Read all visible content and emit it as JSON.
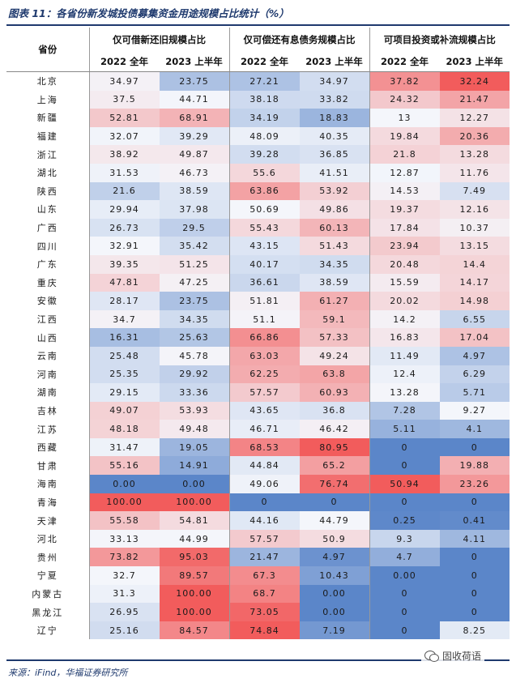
{
  "title": "图表 11：各省份新发城投债募集资金用途规模占比统计（%）",
  "source": "来源：iFind，华福证券研究所",
  "watermark": "固收荷语",
  "header": {
    "province": "省份",
    "groups": [
      "仅可借新还旧规模占比",
      "仅可偿还有息债务规模占比",
      "可项目投资或补流规模占比"
    ],
    "subcols": [
      "2022 全年",
      "2023 上半年"
    ]
  },
  "rows": [
    {
      "p": "北京",
      "v": [
        "34.97",
        "23.75",
        "27.21",
        "34.97",
        "37.82",
        "32.24"
      ]
    },
    {
      "p": "上海",
      "v": [
        "37.5",
        "44.71",
        "38.18",
        "33.82",
        "24.32",
        "21.47"
      ]
    },
    {
      "p": "新疆",
      "v": [
        "52.81",
        "68.91",
        "34.19",
        "18.83",
        "13",
        "12.27"
      ]
    },
    {
      "p": "福建",
      "v": [
        "32.07",
        "39.29",
        "48.09",
        "40.35",
        "19.84",
        "20.36"
      ]
    },
    {
      "p": "浙江",
      "v": [
        "38.92",
        "49.87",
        "39.28",
        "36.85",
        "21.8",
        "13.28"
      ]
    },
    {
      "p": "湖北",
      "v": [
        "31.53",
        "46.73",
        "55.6",
        "41.51",
        "12.87",
        "11.76"
      ]
    },
    {
      "p": "陕西",
      "v": [
        "21.6",
        "38.59",
        "63.86",
        "53.92",
        "14.53",
        "7.49"
      ]
    },
    {
      "p": "山东",
      "v": [
        "29.94",
        "37.98",
        "50.69",
        "49.86",
        "19.37",
        "12.16"
      ]
    },
    {
      "p": "广西",
      "v": [
        "26.73",
        "29.5",
        "55.43",
        "60.13",
        "17.84",
        "10.37"
      ]
    },
    {
      "p": "四川",
      "v": [
        "32.91",
        "35.42",
        "43.15",
        "51.43",
        "23.94",
        "13.15"
      ]
    },
    {
      "p": "广东",
      "v": [
        "39.35",
        "51.25",
        "40.17",
        "34.35",
        "20.48",
        "14.4"
      ]
    },
    {
      "p": "重庆",
      "v": [
        "47.81",
        "47.25",
        "36.61",
        "38.59",
        "15.59",
        "14.17"
      ]
    },
    {
      "p": "安徽",
      "v": [
        "28.17",
        "23.75",
        "51.81",
        "61.27",
        "20.02",
        "14.98"
      ]
    },
    {
      "p": "江西",
      "v": [
        "34.7",
        "34.35",
        "51.1",
        "59.1",
        "14.2",
        "6.55"
      ]
    },
    {
      "p": "山西",
      "v": [
        "16.31",
        "25.63",
        "66.86",
        "57.33",
        "16.83",
        "17.04"
      ]
    },
    {
      "p": "云南",
      "v": [
        "25.48",
        "45.78",
        "63.03",
        "49.24",
        "11.49",
        "4.97"
      ]
    },
    {
      "p": "河南",
      "v": [
        "25.35",
        "29.92",
        "62.25",
        "63.8",
        "12.4",
        "6.29"
      ]
    },
    {
      "p": "湖南",
      "v": [
        "29.15",
        "33.36",
        "57.57",
        "60.93",
        "13.28",
        "5.71"
      ]
    },
    {
      "p": "吉林",
      "v": [
        "49.07",
        "53.93",
        "43.65",
        "36.8",
        "7.28",
        "9.27"
      ]
    },
    {
      "p": "江苏",
      "v": [
        "48.18",
        "49.48",
        "46.71",
        "46.42",
        "5.11",
        "4.1"
      ]
    },
    {
      "p": "西藏",
      "v": [
        "31.47",
        "19.05",
        "68.53",
        "80.95",
        "0",
        "0"
      ]
    },
    {
      "p": "甘肃",
      "v": [
        "55.16",
        "14.91",
        "44.84",
        "65.2",
        "0",
        "19.88"
      ]
    },
    {
      "p": "海南",
      "v": [
        "0.00",
        "0.00",
        "49.06",
        "76.74",
        "50.94",
        "23.26"
      ]
    },
    {
      "p": "青海",
      "v": [
        "100.00",
        "100.00",
        "0",
        "0",
        "0",
        "0"
      ]
    },
    {
      "p": "天津",
      "v": [
        "55.58",
        "54.81",
        "44.16",
        "44.79",
        "0.25",
        "0.41"
      ]
    },
    {
      "p": "河北",
      "v": [
        "33.13",
        "44.99",
        "57.57",
        "50.9",
        "9.3",
        "4.11"
      ]
    },
    {
      "p": "贵州",
      "v": [
        "73.82",
        "95.03",
        "21.47",
        "4.97",
        "4.7",
        "0"
      ]
    },
    {
      "p": "宁夏",
      "v": [
        "32.7",
        "89.57",
        "67.3",
        "10.43",
        "0.00",
        "0"
      ]
    },
    {
      "p": "内蒙古",
      "v": [
        "31.3",
        "100.00",
        "68.7",
        "0.00",
        "0",
        "0"
      ]
    },
    {
      "p": "黑龙江",
      "v": [
        "26.95",
        "100.00",
        "73.05",
        "0.00",
        "0",
        "0"
      ]
    },
    {
      "p": "辽宁",
      "v": [
        "25.16",
        "84.57",
        "74.84",
        "7.19",
        "0",
        "8.25"
      ]
    }
  ],
  "colors": {
    "low": "#5b86c9",
    "mid": "#f4f6fb",
    "high": "#f25c5c",
    "rule": "#1f3a6e"
  }
}
